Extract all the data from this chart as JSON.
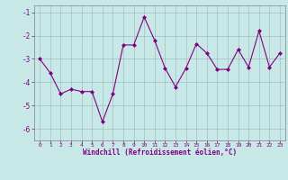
{
  "x": [
    0,
    1,
    2,
    3,
    4,
    5,
    6,
    7,
    8,
    9,
    10,
    11,
    12,
    13,
    14,
    15,
    16,
    17,
    18,
    19,
    20,
    21,
    22,
    23
  ],
  "y": [
    -3.0,
    -3.6,
    -4.5,
    -4.3,
    -4.4,
    -4.4,
    -5.7,
    -4.5,
    -2.4,
    -2.4,
    -1.2,
    -2.2,
    -3.4,
    -4.2,
    -3.4,
    -2.35,
    -2.75,
    -3.45,
    -3.45,
    -2.6,
    -3.35,
    -1.8,
    -3.35,
    -2.75
  ],
  "line_color": "#800080",
  "marker": "D",
  "marker_size": 2,
  "bg_color": "#c8e8e8",
  "grid_color": "#a0c0c0",
  "xlabel": "Windchill (Refroidissement éolien,°C)",
  "xlabel_color": "#800080",
  "tick_color": "#800080",
  "ylim": [
    -6.5,
    -0.7
  ],
  "xlim": [
    -0.5,
    23.5
  ],
  "yticks": [
    -6,
    -5,
    -4,
    -3,
    -2,
    -1
  ],
  "xticks": [
    0,
    1,
    2,
    3,
    4,
    5,
    6,
    7,
    8,
    9,
    10,
    11,
    12,
    13,
    14,
    15,
    16,
    17,
    18,
    19,
    20,
    21,
    22,
    23
  ],
  "figsize": [
    3.2,
    2.0
  ],
  "dpi": 100
}
